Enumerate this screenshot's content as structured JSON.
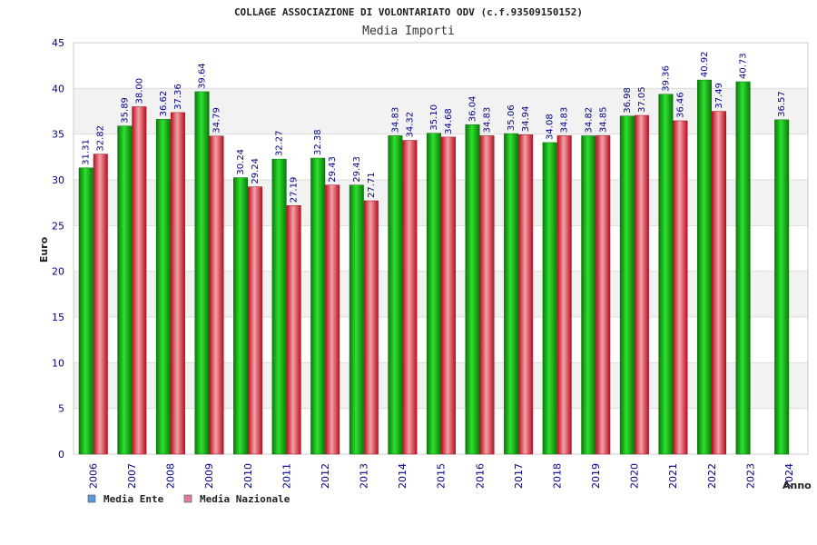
{
  "chart_data": {
    "type": "bar",
    "title": "COLLAGE ASSOCIAZIONE DI VOLONTARIATO ODV (c.f.93509150152)",
    "subtitle": "Media Importi",
    "ylabel": "Euro",
    "xlabel": "Anno",
    "ylim": [
      0,
      45
    ],
    "yticks": [
      0,
      5,
      10,
      15,
      20,
      25,
      30,
      35,
      40,
      45
    ],
    "grid": true,
    "legend_position": "bottom-left",
    "categories": [
      "2006",
      "2007",
      "2008",
      "2009",
      "2010",
      "2011",
      "2012",
      "2013",
      "2014",
      "2015",
      "2016",
      "2017",
      "2018",
      "2019",
      "2020",
      "2021",
      "2022",
      "2023",
      "2024"
    ],
    "series": [
      {
        "name": "Media Ente",
        "color": "#1db81d",
        "legend_color": "#5b9bd5",
        "values": [
          31.31,
          35.89,
          36.62,
          39.64,
          30.24,
          32.27,
          32.38,
          29.43,
          34.83,
          35.1,
          36.04,
          35.06,
          34.08,
          34.82,
          36.98,
          39.36,
          40.92,
          40.73,
          36.57
        ],
        "labels": [
          "31.31",
          "35.89",
          "36.62",
          "39.64",
          "30.24",
          "32.27",
          "32.38",
          "29.43",
          "34.83",
          "35.10",
          "36.04",
          "35.06",
          "34.08",
          "34.82",
          "36.98",
          "39.36",
          "40.92",
          "40.73",
          "36.57"
        ]
      },
      {
        "name": "Media Nazionale",
        "color": "#e0303a",
        "legend_color": "#e07ba0",
        "values": [
          32.82,
          38.0,
          37.36,
          34.79,
          29.24,
          27.19,
          29.43,
          27.71,
          34.32,
          34.68,
          34.83,
          34.94,
          34.83,
          34.85,
          37.05,
          36.46,
          37.49,
          null,
          null
        ],
        "labels": [
          "32.82",
          "38.00",
          "37.36",
          "34.79",
          "29.24",
          "27.19",
          "29.43",
          "27.71",
          "34.32",
          "34.68",
          "34.83",
          "34.94",
          "34.83",
          "34.85",
          "37.05",
          "36.46",
          "37.49",
          null,
          null
        ]
      }
    ]
  }
}
